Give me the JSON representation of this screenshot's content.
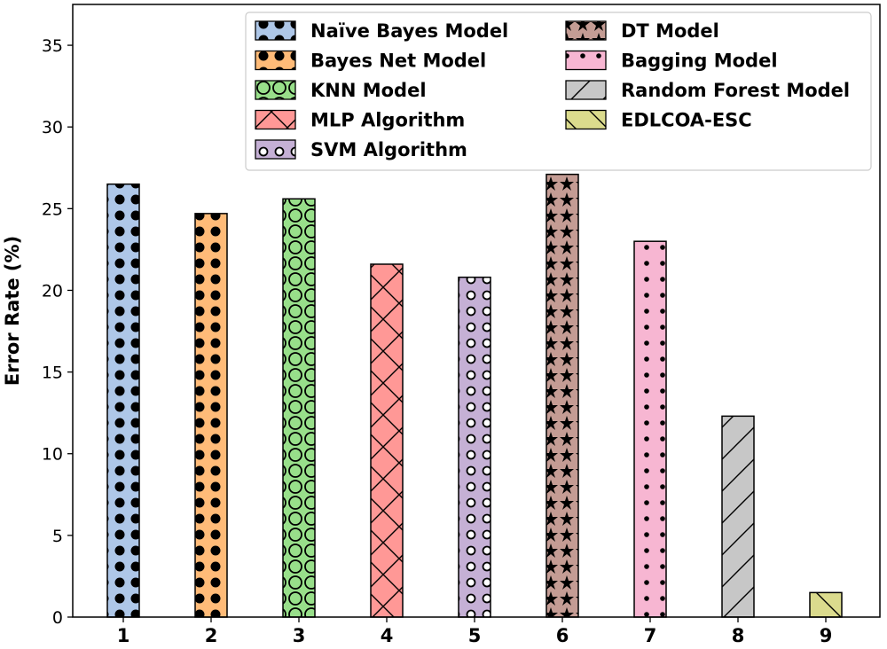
{
  "chart_data": {
    "type": "bar",
    "title": "",
    "xlabel": "",
    "ylabel": "Error Rate (%)",
    "categories": [
      "1",
      "2",
      "3",
      "4",
      "5",
      "6",
      "7",
      "8",
      "9"
    ],
    "values": [
      26.5,
      24.7,
      25.6,
      21.6,
      20.8,
      27.1,
      23.0,
      12.3,
      1.5
    ],
    "series_names": [
      "Naïve Bayes Model",
      "Bayes Net Model",
      "KNN Model",
      "MLP Algorithm",
      "SVM Algorithm",
      "DT Model",
      "Bagging Model",
      "Random Forest Model",
      "EDLCOA-ESC"
    ],
    "colors": [
      "#aec7e8",
      "#ffbb78",
      "#98df8a",
      "#ff9896",
      "#c5b0d5",
      "#c49c94",
      "#f7b6d2",
      "#c7c7c7",
      "#dbdb8d"
    ],
    "hatches": [
      "dots-large",
      "dots-large",
      "circles",
      "cross",
      "rings",
      "stars",
      "dots-small",
      "diagonal",
      "backslash"
    ],
    "ylim": [
      0,
      37.5
    ],
    "yticks": [
      0,
      5,
      10,
      15,
      20,
      25,
      30,
      35
    ],
    "grid": false,
    "legend_position": "top-right",
    "legend_columns": 2
  }
}
